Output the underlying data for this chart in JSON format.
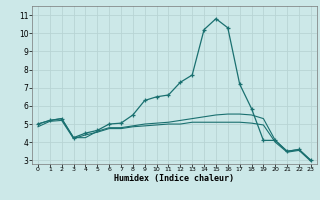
{
  "xlabel": "Humidex (Indice chaleur)",
  "xlim": [
    -0.5,
    23.5
  ],
  "ylim": [
    2.8,
    11.5
  ],
  "xticks": [
    0,
    1,
    2,
    3,
    4,
    5,
    6,
    7,
    8,
    9,
    10,
    11,
    12,
    13,
    14,
    15,
    16,
    17,
    18,
    19,
    20,
    21,
    22,
    23
  ],
  "yticks": [
    3,
    4,
    5,
    6,
    7,
    8,
    9,
    10,
    11
  ],
  "bg_color": "#cce8e8",
  "grid_color": "#b8d4d4",
  "line_color": "#1a7070",
  "line1_x": [
    0,
    1,
    2,
    3,
    4,
    5,
    6,
    7,
    8,
    9,
    10,
    11,
    12,
    13,
    14,
    15,
    16,
    17,
    18,
    19,
    20,
    21,
    22,
    23
  ],
  "line1_y": [
    5.0,
    5.2,
    5.3,
    4.25,
    4.25,
    4.6,
    4.8,
    4.8,
    4.9,
    5.0,
    5.05,
    5.1,
    5.2,
    5.3,
    5.4,
    5.5,
    5.55,
    5.55,
    5.5,
    5.3,
    4.1,
    3.5,
    3.6,
    3.0
  ],
  "line2_x": [
    0,
    1,
    2,
    3,
    4,
    5,
    6,
    7,
    8,
    9,
    10,
    11,
    12,
    13,
    14,
    15,
    16,
    17,
    18,
    19,
    20,
    21,
    22,
    23
  ],
  "line2_y": [
    5.0,
    5.2,
    5.3,
    4.25,
    4.5,
    4.65,
    5.0,
    5.05,
    5.5,
    6.3,
    6.5,
    6.6,
    7.3,
    7.7,
    10.2,
    10.8,
    10.3,
    7.2,
    5.85,
    4.1,
    4.1,
    3.5,
    3.6,
    3.0
  ],
  "line3_x": [
    0,
    1,
    2,
    3,
    4,
    5,
    6,
    7,
    8,
    9,
    10,
    11,
    12,
    13,
    14,
    15,
    16,
    17,
    18,
    19,
    20,
    21,
    22,
    23
  ],
  "line3_y": [
    4.85,
    5.15,
    5.2,
    4.2,
    4.4,
    4.55,
    4.75,
    4.75,
    4.85,
    4.9,
    4.95,
    5.0,
    5.0,
    5.1,
    5.1,
    5.1,
    5.1,
    5.1,
    5.05,
    4.95,
    4.0,
    3.45,
    3.55,
    2.95
  ]
}
